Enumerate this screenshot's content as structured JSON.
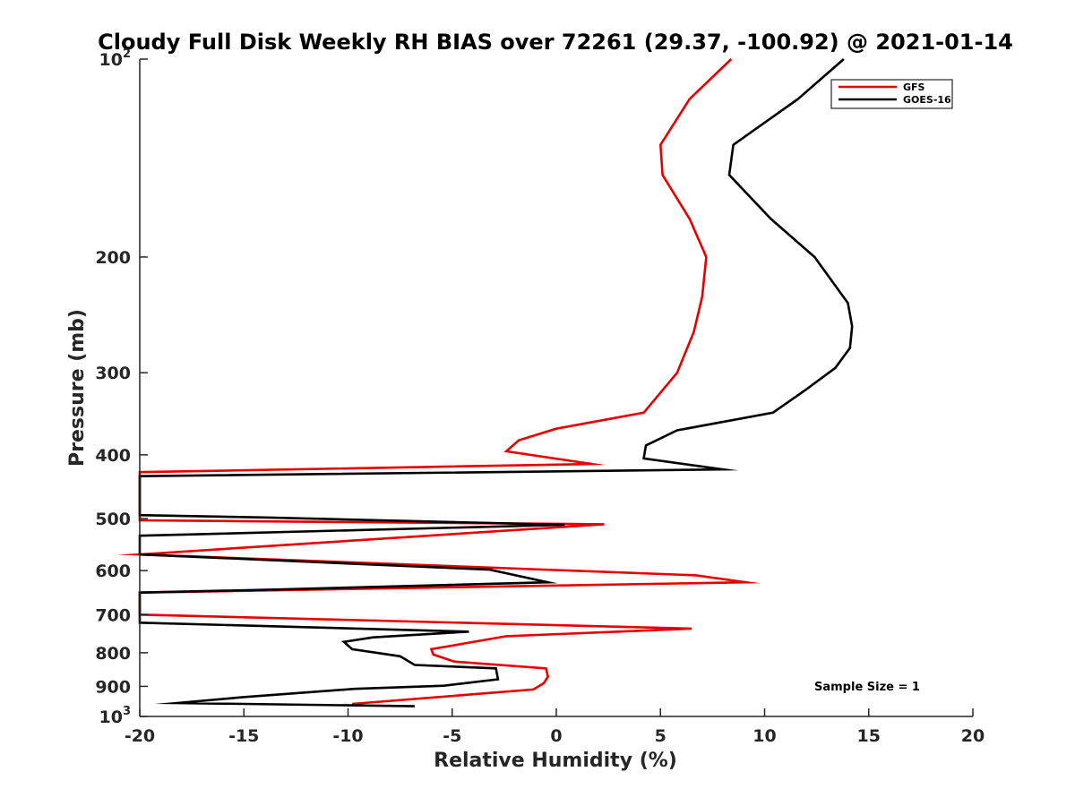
{
  "chart_data": {
    "type": "line",
    "title": "Cloudy Full Disk Weekly RH BIAS over 72261 (29.37, -100.92) @ 2021-01-14",
    "xlabel": "Relative Humidity (%)",
    "ylabel": "Pressure (mb)",
    "xlim": [
      -20,
      20
    ],
    "ylim": [
      100,
      1000
    ],
    "y_scale": "log",
    "y_reversed": true,
    "grid": false,
    "legend_position": "top-right",
    "x_ticks": [
      "-20",
      "-15",
      "-10",
      "-5",
      "0",
      "5",
      "10",
      "15",
      "20"
    ],
    "y_ticks": [
      {
        "value": 100,
        "base": "10",
        "exp": "2",
        "label": ""
      },
      {
        "value": 200,
        "base": "",
        "exp": "",
        "label": "200"
      },
      {
        "value": 300,
        "base": "",
        "exp": "",
        "label": "300"
      },
      {
        "value": 400,
        "base": "",
        "exp": "",
        "label": "400"
      },
      {
        "value": 500,
        "base": "",
        "exp": "",
        "label": "500"
      },
      {
        "value": 600,
        "base": "",
        "exp": "",
        "label": "600"
      },
      {
        "value": 700,
        "base": "",
        "exp": "",
        "label": "700"
      },
      {
        "value": 800,
        "base": "",
        "exp": "",
        "label": "800"
      },
      {
        "value": 900,
        "base": "",
        "exp": "",
        "label": "900"
      },
      {
        "value": 1000,
        "base": "10",
        "exp": "3",
        "label": ""
      }
    ],
    "series": [
      {
        "name": "GFS",
        "color": "#e60000",
        "x": [
          8.4,
          6.4,
          5.0,
          5.1,
          6.4,
          7.2,
          7.0,
          6.6,
          5.8,
          4.2,
          0.0,
          -1.8,
          -2.4,
          1.7,
          -20.0,
          -20.0,
          2.3,
          -20.0,
          -20.0,
          6.7,
          9.1,
          -20.0,
          -20.0,
          6.5,
          -2.4,
          -6.0,
          -5.9,
          -4.9,
          -0.5,
          -0.4,
          -0.6,
          -1.1,
          -9.8
        ],
        "y": [
          100,
          115,
          135,
          150,
          175,
          200,
          230,
          260,
          300,
          345,
          365,
          380,
          395,
          413,
          425,
          503,
          510,
          567,
          567,
          610,
          625,
          648,
          700,
          735,
          755,
          790,
          805,
          825,
          845,
          870,
          890,
          910,
          957
        ]
      },
      {
        "name": "GOES-16",
        "color": "#000000",
        "x": [
          13.8,
          11.6,
          8.5,
          8.3,
          10.3,
          12.4,
          14.0,
          14.2,
          14.1,
          13.4,
          12.0,
          10.4,
          5.8,
          4.3,
          4.2,
          8.0,
          -20.0,
          -20.0,
          -14.0,
          0.4,
          -20.0,
          -20.0,
          -3.2,
          -0.4,
          -13.3,
          -20.0,
          -20.0,
          -4.2,
          -8.8,
          -10.2,
          -9.8,
          -7.5,
          -6.8,
          -2.9,
          -2.8,
          -5.4,
          -9.7,
          -15.1,
          -18.2,
          -6.8
        ],
        "y": [
          100,
          115,
          135,
          150,
          175,
          200,
          235,
          255,
          275,
          295,
          318,
          345,
          367,
          387,
          405,
          421,
          431,
          494,
          498,
          511,
          531,
          567,
          598,
          625,
          641,
          648,
          720,
          743,
          758,
          770,
          790,
          810,
          835,
          845,
          878,
          898,
          908,
          935,
          954,
          965
        ]
      }
    ],
    "annotation": "Sample Size = 1"
  }
}
